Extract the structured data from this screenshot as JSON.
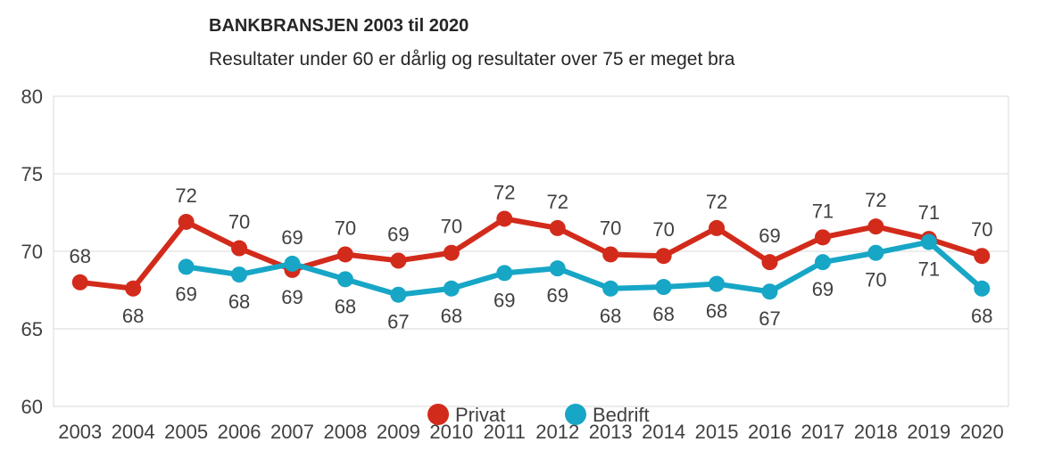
{
  "chart_data": {
    "type": "line",
    "title": "BANKBRANSJEN 2003 til 2020",
    "subtitle": "Resultater under 60 er dårlig og resultater over 75 er meget bra",
    "categories": [
      "2003",
      "2004",
      "2005",
      "2006",
      "2007",
      "2008",
      "2009",
      "2010",
      "2011",
      "2012",
      "2013",
      "2014",
      "2015",
      "2016",
      "2017",
      "2018",
      "2019",
      "2020"
    ],
    "ylim": [
      60,
      80
    ],
    "yticks": [
      60,
      65,
      70,
      75,
      80
    ],
    "grid": true,
    "legend_position": "bottom",
    "series": [
      {
        "name": "Privat",
        "color": "#d22b1b",
        "values": [
          68.0,
          67.6,
          71.9,
          70.2,
          68.8,
          69.8,
          69.4,
          69.9,
          72.1,
          71.5,
          69.8,
          69.7,
          71.5,
          69.3,
          70.9,
          71.6,
          70.8,
          69.7
        ],
        "labels": [
          "68",
          "68",
          "72",
          "70",
          "69",
          "70",
          "69",
          "70",
          "72",
          "72",
          "70",
          "70",
          "72",
          "69",
          "71",
          "72",
          "71",
          "70"
        ],
        "label_positions": [
          "above",
          "below",
          "above",
          "above",
          "below",
          "above",
          "above",
          "above",
          "above",
          "above",
          "above",
          "above",
          "above",
          "above",
          "above",
          "above",
          "above",
          "above"
        ]
      },
      {
        "name": "Bedrift",
        "color": "#17a6c6",
        "values": [
          null,
          null,
          69.0,
          68.5,
          69.2,
          68.2,
          67.2,
          67.6,
          68.6,
          68.9,
          67.6,
          67.7,
          67.9,
          67.4,
          69.3,
          69.9,
          70.6,
          67.6
        ],
        "labels": [
          "",
          "",
          "69",
          "68",
          "69",
          "68",
          "67",
          "68",
          "69",
          "69",
          "68",
          "68",
          "68",
          "67",
          "69",
          "70",
          "71",
          "68"
        ],
        "label_positions": [
          "",
          "",
          "below",
          "below",
          "above",
          "below",
          "below",
          "below",
          "below",
          "below",
          "below",
          "below",
          "below",
          "below",
          "below",
          "below",
          "below",
          "below"
        ]
      }
    ]
  }
}
